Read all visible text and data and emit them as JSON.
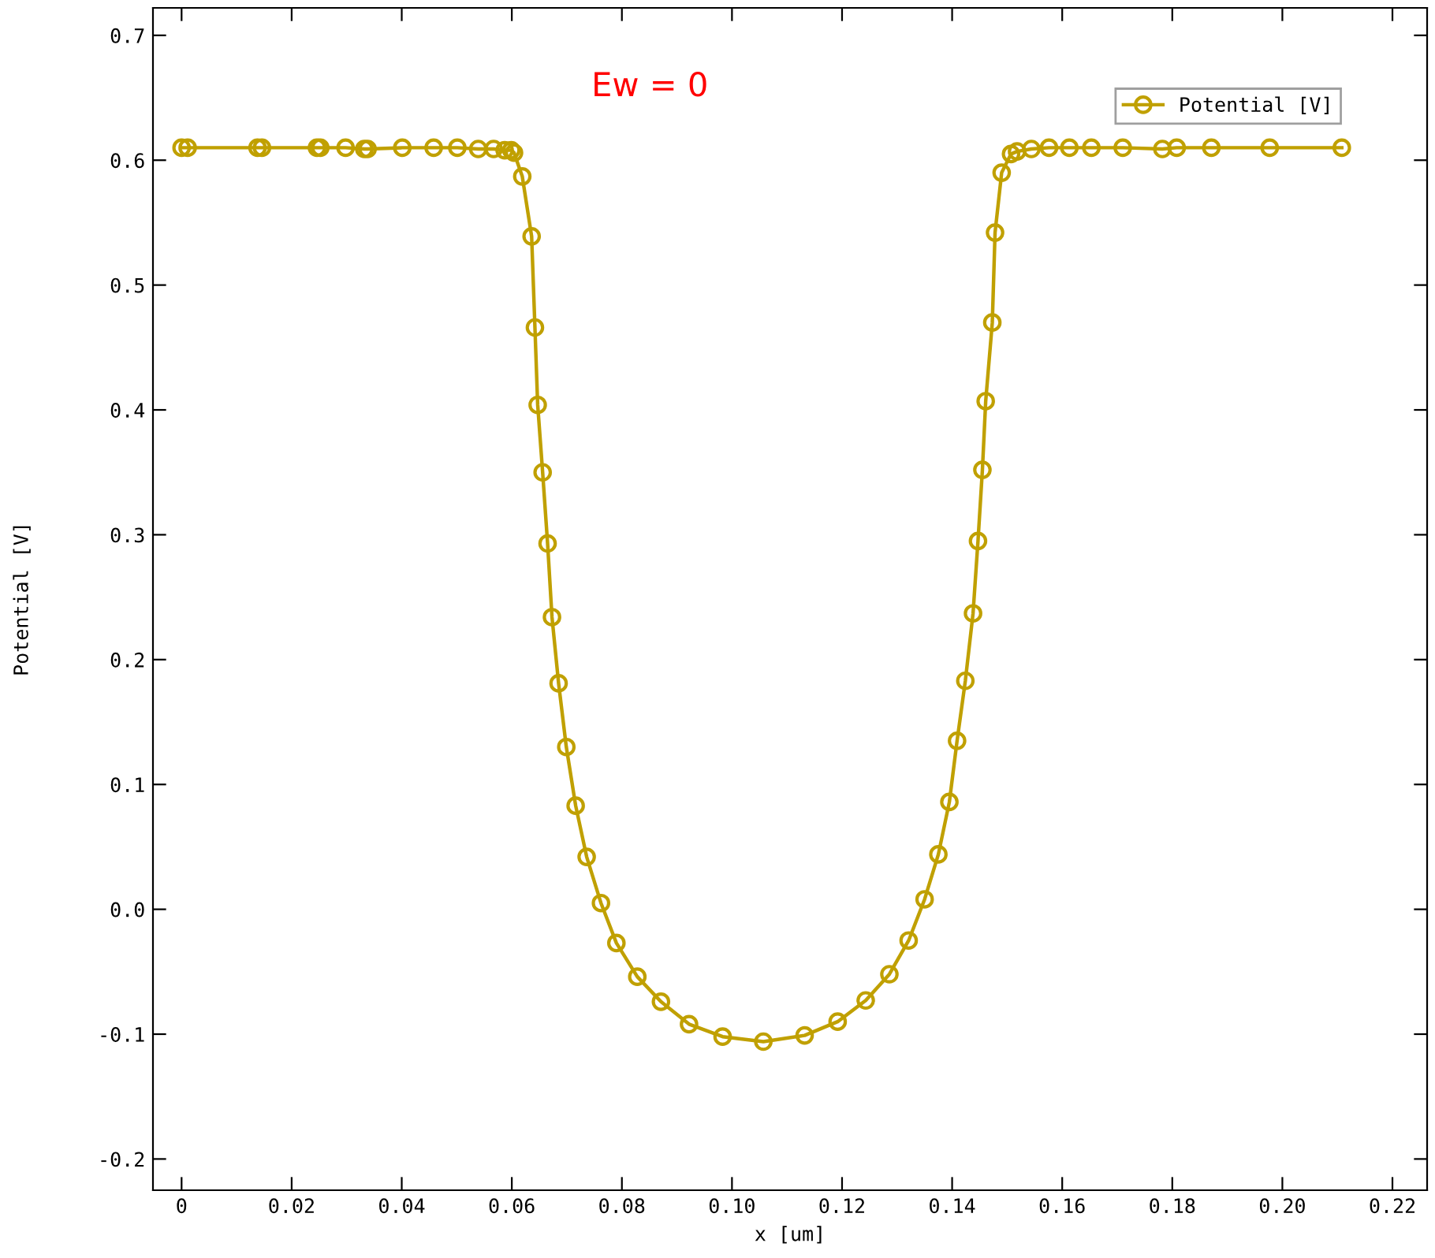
{
  "chart_data": {
    "type": "line",
    "xlabel": "x [um]",
    "ylabel": "Potential [V]",
    "annotations": [
      "Ew = 0"
    ],
    "xlim": [
      -0.0052,
      0.2263
    ],
    "xticks": [
      {
        "value": 0,
        "label": "0"
      },
      0.02,
      0.04,
      0.06,
      0.08,
      {
        "value": 0.1,
        "label": "0.10"
      },
      0.12,
      0.14,
      0.16,
      0.18,
      {
        "value": 0.2,
        "label": "0.20"
      },
      0.22
    ],
    "ylim": [
      -0.225,
      0.722
    ],
    "yticks": [
      {
        "value": -0.2,
        "label": "-0.2"
      },
      {
        "value": -0.1,
        "label": "-0.1"
      },
      {
        "value": 0,
        "label": "0.0"
      },
      0.1,
      0.2,
      0.3,
      0.4,
      0.5,
      0.6,
      0.7
    ],
    "grid": false,
    "legend": "top right",
    "marker": "circle",
    "line_style": "solid",
    "series": [
      {
        "name": "Potential [V]",
        "color": "#c0a000",
        "x": [
          0,
          0.0011,
          0.0138,
          0.0146,
          0.0246,
          0.0252,
          0.0298,
          0.0332,
          0.0338,
          0.0401,
          0.0458,
          0.0501,
          0.0539,
          0.0567,
          0.0587,
          0.0599,
          0.0604,
          0.0619,
          0.0636,
          0.0642,
          0.0647,
          0.0656,
          0.0665,
          0.0673,
          0.0685,
          0.0699,
          0.0716,
          0.0736,
          0.0762,
          0.079,
          0.0828,
          0.0871,
          0.0922,
          0.0983,
          0.1057,
          0.1132,
          0.1192,
          0.1243,
          0.1286,
          0.1321,
          0.135,
          0.1375,
          0.1395,
          0.1409,
          0.1424,
          0.1438,
          0.1447,
          0.1455,
          0.1461,
          0.1473,
          0.1478,
          0.149,
          0.1507,
          0.1518,
          0.1544,
          0.1576,
          0.1613,
          0.1653,
          0.171,
          0.1782,
          0.1808,
          0.1871,
          0.1977,
          0.2108
        ],
        "values": [
          0.61,
          0.61,
          0.61,
          0.61,
          0.61,
          0.61,
          0.61,
          0.609,
          0.609,
          0.61,
          0.61,
          0.61,
          0.609,
          0.609,
          0.608,
          0.608,
          0.606,
          0.587,
          0.539,
          0.466,
          0.404,
          0.35,
          0.293,
          0.234,
          0.181,
          0.13,
          0.083,
          0.042,
          0.005,
          -0.027,
          -0.054,
          -0.074,
          -0.092,
          -0.102,
          -0.106,
          -0.101,
          -0.09,
          -0.073,
          -0.052,
          -0.025,
          0.008,
          0.044,
          0.086,
          0.135,
          0.183,
          0.237,
          0.295,
          0.352,
          0.407,
          0.47,
          0.542,
          0.59,
          0.605,
          0.607,
          0.609,
          0.61,
          0.61,
          0.61,
          0.61,
          0.609,
          0.61,
          0.61,
          0.61,
          0.61
        ]
      }
    ]
  }
}
